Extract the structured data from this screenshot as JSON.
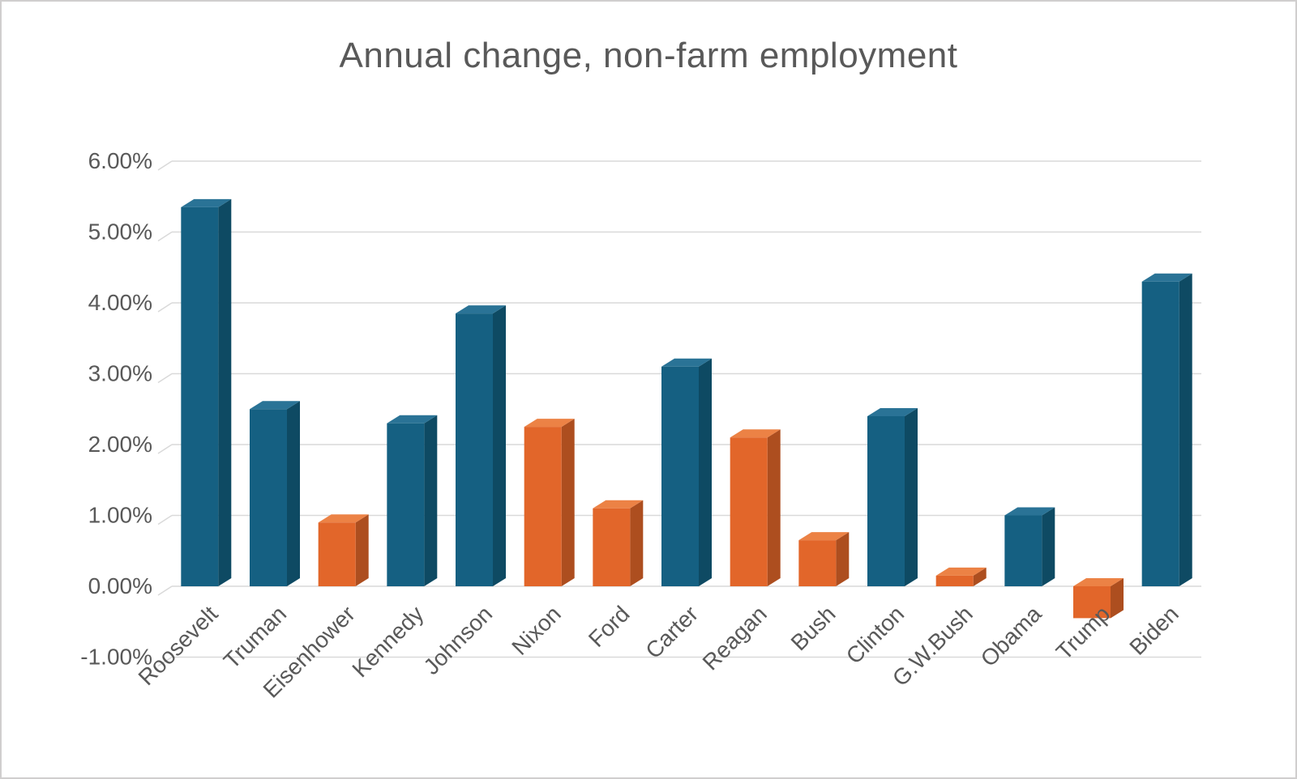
{
  "title": "Annual change, non-farm employment",
  "chart_data": {
    "type": "bar",
    "title": "Annual change, non-farm employment",
    "xlabel": "",
    "ylabel": "",
    "ylim": [
      -1,
      6
    ],
    "grid": true,
    "legend": false,
    "unit": "%",
    "categories": [
      "Roosevelt",
      "Truman",
      "Eisenhower",
      "Kennedy",
      "Johnson",
      "Nixon",
      "Ford",
      "Carter",
      "Reagan",
      "Bush",
      "Clinton",
      "G.W.Bush",
      "Obama",
      "Trump",
      "Biden"
    ],
    "values": [
      5.35,
      2.5,
      0.9,
      2.3,
      3.85,
      2.25,
      1.1,
      3.1,
      2.1,
      0.65,
      2.4,
      0.15,
      1.0,
      -0.45,
      4.3
    ],
    "bar_color_keys": [
      "blue",
      "blue",
      "orange",
      "blue",
      "blue",
      "orange",
      "orange",
      "blue",
      "orange",
      "orange",
      "blue",
      "orange",
      "blue",
      "orange",
      "blue"
    ],
    "palette": {
      "blue": {
        "front": "#156082",
        "side": "#0e4a63",
        "top": "#2a7396"
      },
      "orange": {
        "front": "#e2662a",
        "side": "#ad4e1f",
        "top": "#ec8245"
      }
    },
    "gridline_color": "#d9d9d9",
    "text_color": "#595959",
    "y_axis": {
      "ticks": [
        {
          "label": "6.00%",
          "value": 6
        },
        {
          "label": "5.00%",
          "value": 5
        },
        {
          "label": "4.00%",
          "value": 4
        },
        {
          "label": "3.00%",
          "value": 3
        },
        {
          "label": "2.00%",
          "value": 2
        },
        {
          "label": "1.00%",
          "value": 1
        },
        {
          "label": "0.00%",
          "value": 0
        },
        {
          "label": "-1.00%",
          "value": -1
        }
      ]
    }
  }
}
